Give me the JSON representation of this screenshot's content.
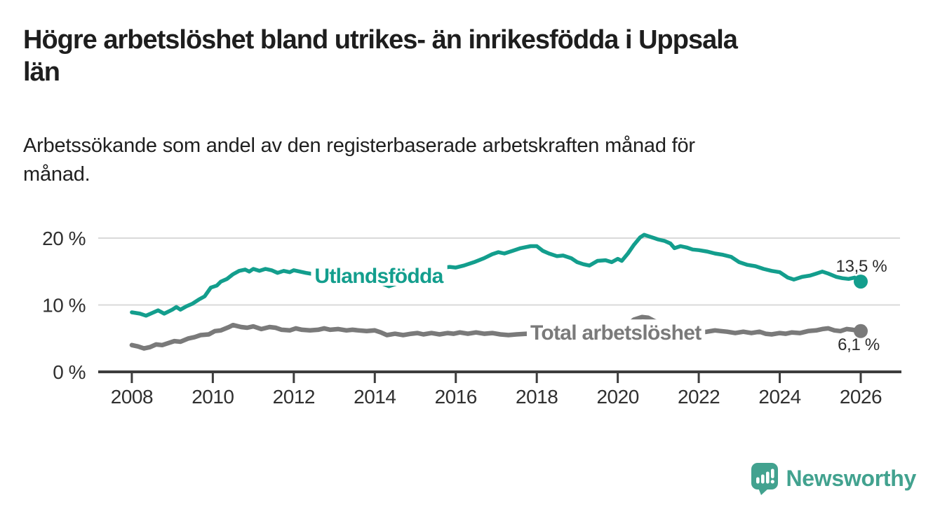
{
  "header": {
    "title_lines": [
      "Högre arbetslöshet bland utrikes- än inrikesfödda i Uppsala",
      "län"
    ],
    "subtitle_lines": [
      "Arbetssökande som andel av den registerbaserade arbetskraften månad för",
      "månad."
    ]
  },
  "chart_data": {
    "type": "line",
    "unit": "%",
    "grid": "horizontal",
    "x_axis": {
      "ticks": [
        2008,
        2010,
        2012,
        2014,
        2016,
        2018,
        2020,
        2022,
        2024,
        2026
      ],
      "range": [
        2007.17,
        2026.97
      ]
    },
    "y_axis": {
      "ticks": [
        0,
        10,
        20
      ],
      "tick_labels": [
        "0 %",
        "10 %",
        "20 %"
      ],
      "range": [
        0,
        22.1
      ]
    },
    "series": [
      {
        "name": "Utlandsfödda",
        "color": "#139e8d",
        "end_label": "13,5 %",
        "end_value": 13.5,
        "label_anchor": {
          "year": 2014.1,
          "value": 13.3
        },
        "x": [
          2008.0,
          2008.2,
          2008.35,
          2008.5,
          2008.65,
          2008.8,
          2009.0,
          2009.1,
          2009.2,
          2009.35,
          2009.5,
          2009.65,
          2009.8,
          2009.95,
          2010.1,
          2010.2,
          2010.35,
          2010.5,
          2010.65,
          2010.8,
          2010.9,
          2011.0,
          2011.15,
          2011.3,
          2011.45,
          2011.6,
          2011.75,
          2011.9,
          2012.0,
          2012.15,
          2012.3,
          2012.5,
          2012.7,
          2012.9,
          2013.1,
          2013.35,
          2013.6,
          2013.85,
          2014.1,
          2014.35,
          2014.6,
          2014.85,
          2015.1,
          2015.35,
          2015.6,
          2015.85,
          2016.0,
          2016.2,
          2016.45,
          2016.7,
          2016.9,
          2017.05,
          2017.2,
          2017.4,
          2017.6,
          2017.85,
          2018.0,
          2018.15,
          2018.3,
          2018.5,
          2018.65,
          2018.85,
          2019.0,
          2019.15,
          2019.3,
          2019.5,
          2019.7,
          2019.85,
          2020.0,
          2020.1,
          2020.25,
          2020.4,
          2020.55,
          2020.65,
          2020.8,
          2020.9,
          2021.0,
          2021.15,
          2021.3,
          2021.4,
          2021.55,
          2021.7,
          2021.85,
          2022.0,
          2022.2,
          2022.4,
          2022.6,
          2022.8,
          2023.0,
          2023.2,
          2023.4,
          2023.6,
          2023.8,
          2024.0,
          2024.2,
          2024.35,
          2024.55,
          2024.75,
          2024.9,
          2025.05,
          2025.2,
          2025.4,
          2025.55,
          2025.7,
          2025.85,
          2026.0
        ],
        "y": [
          8.9,
          8.7,
          8.4,
          8.8,
          9.2,
          8.7,
          9.3,
          9.7,
          9.3,
          9.8,
          10.2,
          10.8,
          11.3,
          12.6,
          12.9,
          13.5,
          13.9,
          14.6,
          15.1,
          15.3,
          15.0,
          15.4,
          15.1,
          15.4,
          15.2,
          14.8,
          15.1,
          14.9,
          15.2,
          15.0,
          14.8,
          14.6,
          14.9,
          14.7,
          14.9,
          14.6,
          14.4,
          14.2,
          13.4,
          12.8,
          13.3,
          13.9,
          14.4,
          14.9,
          15.5,
          15.7,
          15.6,
          15.9,
          16.4,
          17.0,
          17.6,
          17.9,
          17.7,
          18.1,
          18.5,
          18.8,
          18.8,
          18.1,
          17.7,
          17.3,
          17.4,
          17.0,
          16.4,
          16.1,
          15.9,
          16.6,
          16.7,
          16.4,
          16.9,
          16.6,
          17.7,
          19.0,
          20.1,
          20.5,
          20.2,
          20.0,
          19.8,
          19.6,
          19.2,
          18.5,
          18.8,
          18.6,
          18.3,
          18.2,
          18.0,
          17.7,
          17.5,
          17.2,
          16.4,
          16.0,
          15.8,
          15.4,
          15.1,
          14.9,
          14.1,
          13.8,
          14.2,
          14.4,
          14.7,
          15.0,
          14.7,
          14.2,
          14.0,
          13.9,
          14.1,
          13.5
        ]
      },
      {
        "name": "Total arbetslöshet",
        "color": "#7a7a7a",
        "end_label": "6,1 %",
        "end_value": 6.1,
        "label_anchor": {
          "year": 2019.95,
          "value": 4.8
        },
        "x": [
          2008.0,
          2008.15,
          2008.3,
          2008.45,
          2008.6,
          2008.75,
          2008.9,
          2009.05,
          2009.2,
          2009.4,
          2009.55,
          2009.7,
          2009.9,
          2010.05,
          2010.2,
          2010.4,
          2010.5,
          2010.7,
          2010.85,
          2011.0,
          2011.2,
          2011.4,
          2011.55,
          2011.7,
          2011.9,
          2012.05,
          2012.2,
          2012.4,
          2012.6,
          2012.75,
          2012.9,
          2013.1,
          2013.3,
          2013.45,
          2013.6,
          2013.8,
          2014.0,
          2014.15,
          2014.3,
          2014.5,
          2014.7,
          2014.9,
          2015.05,
          2015.2,
          2015.4,
          2015.6,
          2015.8,
          2015.95,
          2016.1,
          2016.3,
          2016.5,
          2016.7,
          2016.9,
          2017.1,
          2017.3,
          2017.5,
          2017.75,
          2018.0,
          2018.25,
          2018.5,
          2018.75,
          2019.0,
          2019.25,
          2019.5,
          2019.75,
          2020.0,
          2020.2,
          2020.4,
          2020.6,
          2020.75,
          2020.9,
          2021.1,
          2021.3,
          2021.5,
          2021.75,
          2022.0,
          2022.2,
          2022.4,
          2022.55,
          2022.7,
          2022.9,
          2023.1,
          2023.3,
          2023.5,
          2023.65,
          2023.8,
          2024.0,
          2024.15,
          2024.3,
          2024.5,
          2024.7,
          2024.9,
          2025.05,
          2025.2,
          2025.35,
          2025.5,
          2025.65,
          2025.8,
          2026.0
        ],
        "y": [
          4.0,
          3.8,
          3.5,
          3.7,
          4.1,
          4.0,
          4.3,
          4.6,
          4.5,
          5.0,
          5.2,
          5.5,
          5.6,
          6.1,
          6.2,
          6.7,
          7.0,
          6.7,
          6.6,
          6.8,
          6.4,
          6.7,
          6.6,
          6.3,
          6.2,
          6.5,
          6.3,
          6.2,
          6.3,
          6.5,
          6.3,
          6.4,
          6.2,
          6.3,
          6.2,
          6.1,
          6.2,
          5.9,
          5.5,
          5.7,
          5.5,
          5.7,
          5.8,
          5.6,
          5.8,
          5.6,
          5.8,
          5.7,
          5.9,
          5.7,
          5.9,
          5.7,
          5.8,
          5.6,
          5.5,
          5.6,
          5.7,
          5.6,
          5.5,
          5.4,
          5.4,
          5.3,
          5.4,
          5.4,
          5.5,
          5.9,
          6.8,
          7.8,
          8.2,
          8.1,
          7.6,
          7.1,
          6.8,
          6.5,
          6.2,
          5.9,
          6.0,
          6.2,
          6.1,
          6.0,
          5.8,
          6.0,
          5.8,
          6.0,
          5.7,
          5.6,
          5.8,
          5.7,
          5.9,
          5.8,
          6.1,
          6.2,
          6.4,
          6.5,
          6.2,
          6.1,
          6.4,
          6.3,
          6.1
        ]
      }
    ]
  },
  "branding": {
    "name": "Newsworthy",
    "color": "#42a28f",
    "icon": "bar-chart-speech-bubble-icon"
  }
}
